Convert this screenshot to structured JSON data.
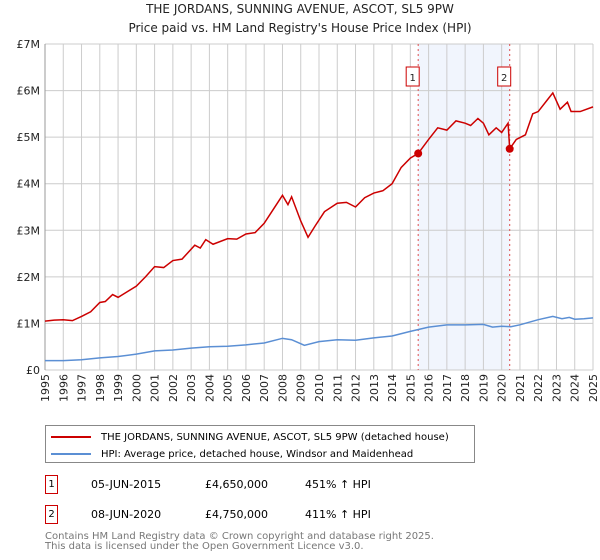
{
  "chart_data": {
    "type": "line",
    "title": "THE JORDANS, SUNNING AVENUE, ASCOT, SL5 9PW",
    "subtitle": "Price paid vs. HM Land Registry's House Price Index (HPI)",
    "xlim": [
      1995,
      2025
    ],
    "ylim": [
      0,
      7000000
    ],
    "x_ticks": [
      "1995",
      "1996",
      "1997",
      "1998",
      "1999",
      "2000",
      "2001",
      "2002",
      "2003",
      "2004",
      "2005",
      "2006",
      "2007",
      "2008",
      "2009",
      "2010",
      "2011",
      "2012",
      "2013",
      "2014",
      "2015",
      "2016",
      "2017",
      "2018",
      "2019",
      "2020",
      "2021",
      "2022",
      "2023",
      "2024",
      "2025"
    ],
    "y_ticks": [
      {
        "v": 0,
        "label": "£0"
      },
      {
        "v": 1000000,
        "label": "£1M"
      },
      {
        "v": 2000000,
        "label": "£2M"
      },
      {
        "v": 3000000,
        "label": "£3M"
      },
      {
        "v": 4000000,
        "label": "£4M"
      },
      {
        "v": 5000000,
        "label": "£5M"
      },
      {
        "v": 6000000,
        "label": "£6M"
      },
      {
        "v": 7000000,
        "label": "£7M"
      }
    ],
    "grid": true,
    "shaded_range": [
      2015.43,
      2020.44
    ],
    "series": [
      {
        "name": "THE JORDANS, SUNNING AVENUE, ASCOT, SL5 9PW (detached house)",
        "color": "#cc0000",
        "x": [
          1995,
          1995.5,
          1996,
          1996.5,
          1997,
          1997.5,
          1998,
          1998.3,
          1998.7,
          1999,
          1999.5,
          2000,
          2000.5,
          2001,
          2001.5,
          2002,
          2002.5,
          2003.2,
          2003.5,
          2003.8,
          2004.2,
          2005,
          2005.5,
          2006,
          2006.5,
          2007,
          2007.5,
          2008,
          2008.3,
          2008.5,
          2009,
          2009.4,
          2009.8,
          2010.3,
          2011,
          2011.5,
          2012,
          2012.5,
          2013,
          2013.5,
          2014,
          2014.5,
          2015,
          2015.43,
          2016,
          2016.5,
          2017,
          2017.5,
          2018,
          2018.3,
          2018.7,
          2019,
          2019.3,
          2019.7,
          2020,
          2020.35,
          2020.44,
          2020.8,
          2021.3,
          2021.7,
          2022,
          2022.5,
          2022.8,
          2023.2,
          2023.6,
          2023.8,
          2024.3,
          2025
        ],
        "y": [
          1050000,
          1070000,
          1080000,
          1060000,
          1150000,
          1250000,
          1450000,
          1470000,
          1620000,
          1560000,
          1680000,
          1800000,
          2000000,
          2220000,
          2200000,
          2350000,
          2380000,
          2680000,
          2620000,
          2800000,
          2700000,
          2820000,
          2810000,
          2920000,
          2950000,
          3150000,
          3450000,
          3750000,
          3550000,
          3720000,
          3200000,
          2850000,
          3100000,
          3400000,
          3580000,
          3600000,
          3500000,
          3700000,
          3800000,
          3850000,
          4000000,
          4350000,
          4550000,
          4650000,
          4950000,
          5200000,
          5150000,
          5350000,
          5300000,
          5250000,
          5400000,
          5300000,
          5050000,
          5200000,
          5100000,
          5300000,
          4750000,
          4950000,
          5050000,
          5500000,
          5550000,
          5800000,
          5950000,
          5600000,
          5750000,
          5550000,
          5550000,
          5650000
        ]
      },
      {
        "name": "HPI: Average price, detached house, Windsor and Maidenhead",
        "color": "#5b8fd4",
        "x": [
          1995,
          1996,
          1997,
          1998,
          1999,
          2000,
          2001,
          2002,
          2003,
          2004,
          2005,
          2006,
          2007,
          2008,
          2008.5,
          2009.2,
          2010,
          2011,
          2012,
          2013,
          2014,
          2015,
          2016,
          2017,
          2018,
          2019,
          2019.5,
          2020,
          2020.5,
          2021,
          2022,
          2022.8,
          2023.3,
          2023.7,
          2024,
          2024.5,
          2025
        ],
        "y": [
          200000,
          200000,
          220000,
          260000,
          290000,
          340000,
          410000,
          430000,
          470000,
          500000,
          510000,
          540000,
          580000,
          680000,
          650000,
          530000,
          610000,
          650000,
          640000,
          690000,
          730000,
          830000,
          920000,
          970000,
          970000,
          980000,
          920000,
          940000,
          930000,
          970000,
          1080000,
          1150000,
          1100000,
          1130000,
          1090000,
          1100000,
          1120000
        ]
      }
    ],
    "markers": [
      {
        "id": "1",
        "x": 2015.43,
        "y": 4650000
      },
      {
        "id": "2",
        "x": 2020.44,
        "y": 4750000
      }
    ]
  },
  "legend": {
    "items": [
      {
        "label": "THE JORDANS, SUNNING AVENUE, ASCOT, SL5 9PW (detached house)",
        "color": "#cc0000"
      },
      {
        "label": "HPI: Average price, detached house, Windsor and Maidenhead",
        "color": "#5b8fd4"
      }
    ]
  },
  "sales": [
    {
      "id": "1",
      "date": "05-JUN-2015",
      "price": "£4,650,000",
      "hpi": "451% ↑ HPI"
    },
    {
      "id": "2",
      "date": "08-JUN-2020",
      "price": "£4,750,000",
      "hpi": "411% ↑ HPI"
    }
  ],
  "footer": {
    "line1": "Contains HM Land Registry data © Crown copyright and database right 2025.",
    "line2": "This data is licensed under the Open Government Licence v3.0."
  }
}
